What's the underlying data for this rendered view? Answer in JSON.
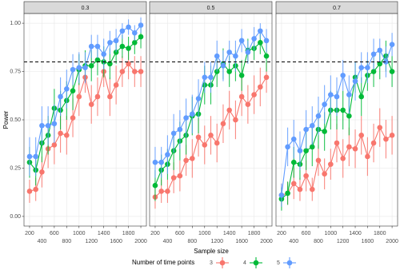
{
  "chart_data": {
    "type": "line",
    "facets": [
      "0.3",
      "0.5",
      "0.7"
    ],
    "x": [
      200,
      300,
      400,
      500,
      600,
      700,
      800,
      900,
      1000,
      1100,
      1200,
      1300,
      1400,
      1500,
      1600,
      1700,
      1800,
      1900,
      2000
    ],
    "xlabel": "Sample size",
    "ylabel": "Power",
    "legend_title": "Number of time points",
    "xlim": [
      110,
      2090
    ],
    "xticks": [
      200,
      400,
      600,
      800,
      1000,
      1200,
      1400,
      1600,
      1800,
      2000
    ],
    "ylim": [
      -0.05,
      1.05
    ],
    "yticks": [
      {
        "value": 0,
        "label": "0.00"
      },
      {
        "value": 0.25,
        "label": "0.25"
      },
      {
        "value": 0.5,
        "label": "0.50"
      },
      {
        "value": 0.75,
        "label": "0.75"
      },
      {
        "value": 1,
        "label": "1.00"
      }
    ],
    "hline": 0.8,
    "grid": true,
    "legend": "bottom",
    "series": [
      {
        "name": "3",
        "color": "#F8766D",
        "values": [
          [
            0.13,
            0.14,
            0.23,
            0.35,
            0.37,
            0.43,
            0.42,
            0.51,
            0.62,
            0.72,
            0.58,
            0.62,
            0.75,
            0.62,
            0.68,
            0.75,
            0.79,
            0.75,
            0.75
          ],
          [
            0.1,
            0.13,
            0.13,
            0.2,
            0.21,
            0.29,
            0.3,
            0.41,
            0.37,
            0.42,
            0.38,
            0.48,
            0.55,
            0.5,
            0.62,
            0.58,
            0.63,
            0.67,
            0.72
          ],
          [
            0.11,
            0.12,
            0.17,
            0.14,
            0.21,
            0.14,
            0.29,
            0.22,
            0.27,
            0.38,
            0.3,
            0.36,
            0.35,
            0.42,
            0.31,
            0.38,
            0.46,
            0.4,
            0.42
          ]
        ],
        "errors": [
          [
            0.06,
            0.06,
            0.08,
            0.1,
            0.1,
            0.1,
            0.1,
            0.1,
            0.1,
            0.08,
            0.1,
            0.1,
            0.08,
            0.1,
            0.1,
            0.08,
            0.08,
            0.08,
            0.08
          ],
          [
            0.06,
            0.06,
            0.06,
            0.08,
            0.08,
            0.08,
            0.1,
            0.1,
            0.1,
            0.1,
            0.1,
            0.1,
            0.1,
            0.1,
            0.1,
            0.1,
            0.1,
            0.1,
            0.08
          ],
          [
            0.06,
            0.06,
            0.08,
            0.06,
            0.08,
            0.06,
            0.08,
            0.08,
            0.08,
            0.1,
            0.1,
            0.1,
            0.1,
            0.1,
            0.1,
            0.1,
            0.1,
            0.1,
            0.1
          ]
        ]
      },
      {
        "name": "4",
        "color": "#00BA38",
        "values": [
          [
            0.28,
            0.24,
            0.38,
            0.42,
            0.56,
            0.55,
            0.6,
            0.65,
            0.76,
            0.78,
            0.78,
            0.81,
            0.8,
            0.79,
            0.85,
            0.88,
            0.87,
            0.9,
            0.93
          ],
          [
            0.16,
            0.24,
            0.27,
            0.34,
            0.39,
            0.42,
            0.52,
            0.53,
            0.68,
            0.68,
            0.75,
            0.79,
            0.75,
            0.78,
            0.73,
            0.86,
            0.87,
            0.9,
            0.83
          ],
          [
            0.09,
            0.12,
            0.28,
            0.27,
            0.34,
            0.36,
            0.45,
            0.44,
            0.55,
            0.55,
            0.55,
            0.52,
            0.72,
            0.62,
            0.73,
            0.75,
            0.79,
            0.83,
            0.75
          ]
        ],
        "errors": [
          [
            0.08,
            0.08,
            0.1,
            0.1,
            0.1,
            0.1,
            0.1,
            0.1,
            0.08,
            0.08,
            0.08,
            0.08,
            0.08,
            0.08,
            0.06,
            0.06,
            0.06,
            0.06,
            0.06
          ],
          [
            0.08,
            0.08,
            0.08,
            0.1,
            0.1,
            0.1,
            0.1,
            0.1,
            0.1,
            0.1,
            0.08,
            0.08,
            0.08,
            0.08,
            0.08,
            0.06,
            0.06,
            0.06,
            0.08
          ],
          [
            0.06,
            0.06,
            0.08,
            0.08,
            0.1,
            0.1,
            0.1,
            0.1,
            0.1,
            0.1,
            0.1,
            0.1,
            0.08,
            0.1,
            0.08,
            0.08,
            0.08,
            0.08,
            0.08
          ]
        ]
      },
      {
        "name": "5",
        "color": "#619CFF",
        "values": [
          [
            0.31,
            0.31,
            0.47,
            0.47,
            0.48,
            0.62,
            0.66,
            0.76,
            0.77,
            0.77,
            0.88,
            0.88,
            0.84,
            0.9,
            0.91,
            0.96,
            0.98,
            0.95,
            0.99
          ],
          [
            0.28,
            0.28,
            0.32,
            0.43,
            0.45,
            0.51,
            0.53,
            0.61,
            0.72,
            0.72,
            0.83,
            0.78,
            0.85,
            0.83,
            0.91,
            0.85,
            0.92,
            0.96,
            0.91
          ],
          [
            0.11,
            0.36,
            0.4,
            0.34,
            0.45,
            0.47,
            0.52,
            0.58,
            0.63,
            0.62,
            0.73,
            0.63,
            0.7,
            0.77,
            0.77,
            0.84,
            0.86,
            0.8,
            0.89
          ]
        ],
        "errors": [
          [
            0.1,
            0.1,
            0.1,
            0.1,
            0.1,
            0.1,
            0.1,
            0.08,
            0.08,
            0.08,
            0.06,
            0.06,
            0.08,
            0.06,
            0.06,
            0.04,
            0.04,
            0.04,
            0.04
          ],
          [
            0.08,
            0.08,
            0.1,
            0.1,
            0.1,
            0.1,
            0.1,
            0.1,
            0.08,
            0.08,
            0.08,
            0.08,
            0.06,
            0.08,
            0.06,
            0.06,
            0.06,
            0.04,
            0.06
          ],
          [
            0.06,
            0.1,
            0.1,
            0.1,
            0.1,
            0.1,
            0.1,
            0.1,
            0.1,
            0.1,
            0.08,
            0.1,
            0.1,
            0.08,
            0.08,
            0.08,
            0.06,
            0.08,
            0.06
          ]
        ]
      }
    ]
  }
}
